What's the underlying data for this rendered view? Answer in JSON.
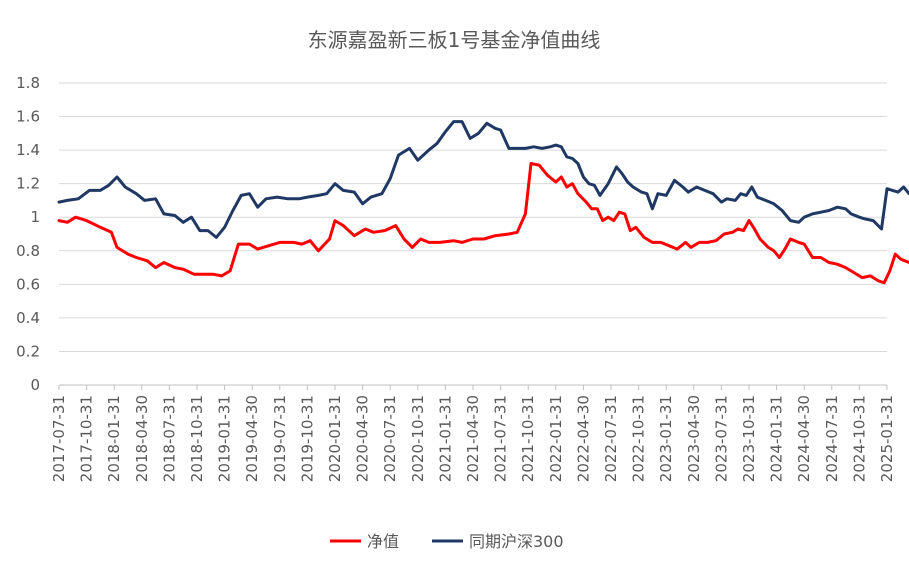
{
  "chart_data": {
    "type": "line",
    "title": "东源嘉盈新三板1号基金净值曲线",
    "xlabel": "",
    "ylabel": "",
    "ylim": [
      0,
      1.8
    ],
    "yticks": [
      "0",
      "0.2",
      "0.4",
      "0.6",
      "0.8",
      "1",
      "1.2",
      "1.4",
      "1.6",
      "1.8"
    ],
    "xticks": [
      "2017-07-31",
      "2017-10-31",
      "2018-01-31",
      "2018-04-30",
      "2018-07-31",
      "2018-10-31",
      "2019-01-31",
      "2019-04-30",
      "2019-07-31",
      "2019-10-31",
      "2020-01-31",
      "2020-04-30",
      "2020-07-31",
      "2020-10-31",
      "2021-01-31",
      "2021-04-30",
      "2021-07-31",
      "2021-10-31",
      "2022-01-31",
      "2022-04-30",
      "2022-07-31",
      "2022-10-31",
      "2023-01-31",
      "2023-04-30",
      "2023-07-31",
      "2023-10-31",
      "2024-01-31",
      "2024-04-30",
      "2024-07-31",
      "2024-10-31",
      "2025-01-31"
    ],
    "grid": true,
    "legend_position": "bottom",
    "series": [
      {
        "name": "净值",
        "color": "#FF0000",
        "points": [
          [
            0,
            0.98
          ],
          [
            0.3,
            0.97
          ],
          [
            0.6,
            1.0
          ],
          [
            1.0,
            0.98
          ],
          [
            1.5,
            0.94
          ],
          [
            1.9,
            0.91
          ],
          [
            2.1,
            0.82
          ],
          [
            2.5,
            0.78
          ],
          [
            2.8,
            0.76
          ],
          [
            3.2,
            0.74
          ],
          [
            3.5,
            0.7
          ],
          [
            3.8,
            0.73
          ],
          [
            4.2,
            0.7
          ],
          [
            4.5,
            0.69
          ],
          [
            4.9,
            0.66
          ],
          [
            5.2,
            0.66
          ],
          [
            5.6,
            0.66
          ],
          [
            5.9,
            0.65
          ],
          [
            6.2,
            0.68
          ],
          [
            6.5,
            0.84
          ],
          [
            6.9,
            0.84
          ],
          [
            7.2,
            0.81
          ],
          [
            7.6,
            0.83
          ],
          [
            8.0,
            0.85
          ],
          [
            8.5,
            0.85
          ],
          [
            8.8,
            0.84
          ],
          [
            9.1,
            0.86
          ],
          [
            9.4,
            0.8
          ],
          [
            9.8,
            0.87
          ],
          [
            10.0,
            0.98
          ],
          [
            10.3,
            0.95
          ],
          [
            10.7,
            0.89
          ],
          [
            11.1,
            0.93
          ],
          [
            11.4,
            0.91
          ],
          [
            11.8,
            0.92
          ],
          [
            12.2,
            0.95
          ],
          [
            12.5,
            0.87
          ],
          [
            12.8,
            0.82
          ],
          [
            13.1,
            0.87
          ],
          [
            13.4,
            0.85
          ],
          [
            13.8,
            0.85
          ],
          [
            14.3,
            0.86
          ],
          [
            14.6,
            0.85
          ],
          [
            15.0,
            0.87
          ],
          [
            15.4,
            0.87
          ],
          [
            15.8,
            0.89
          ],
          [
            16.3,
            0.9
          ],
          [
            16.6,
            0.91
          ],
          [
            16.9,
            1.02
          ],
          [
            17.1,
            1.32
          ],
          [
            17.4,
            1.31
          ],
          [
            17.7,
            1.25
          ],
          [
            18.0,
            1.21
          ],
          [
            18.2,
            1.24
          ],
          [
            18.4,
            1.18
          ],
          [
            18.6,
            1.2
          ],
          [
            18.8,
            1.14
          ],
          [
            19.1,
            1.09
          ],
          [
            19.3,
            1.05
          ],
          [
            19.5,
            1.05
          ],
          [
            19.7,
            0.98
          ],
          [
            19.9,
            1.0
          ],
          [
            20.1,
            0.98
          ],
          [
            20.3,
            1.03
          ],
          [
            20.5,
            1.02
          ],
          [
            20.7,
            0.92
          ],
          [
            20.9,
            0.94
          ],
          [
            21.2,
            0.88
          ],
          [
            21.5,
            0.85
          ],
          [
            21.8,
            0.85
          ],
          [
            22.1,
            0.83
          ],
          [
            22.4,
            0.81
          ],
          [
            22.7,
            0.85
          ],
          [
            22.9,
            0.82
          ],
          [
            23.2,
            0.85
          ],
          [
            23.5,
            0.85
          ],
          [
            23.8,
            0.86
          ],
          [
            24.1,
            0.9
          ],
          [
            24.4,
            0.91
          ],
          [
            24.6,
            0.93
          ],
          [
            24.8,
            0.92
          ],
          [
            25.0,
            0.98
          ],
          [
            25.2,
            0.93
          ],
          [
            25.4,
            0.87
          ],
          [
            25.7,
            0.82
          ],
          [
            25.9,
            0.8
          ],
          [
            26.1,
            0.76
          ],
          [
            26.3,
            0.81
          ],
          [
            26.5,
            0.87
          ],
          [
            26.8,
            0.85
          ],
          [
            27.0,
            0.84
          ],
          [
            27.3,
            0.76
          ],
          [
            27.6,
            0.76
          ],
          [
            27.9,
            0.73
          ],
          [
            28.2,
            0.72
          ],
          [
            28.5,
            0.7
          ],
          [
            28.8,
            0.67
          ],
          [
            29.1,
            0.64
          ],
          [
            29.4,
            0.65
          ],
          [
            29.7,
            0.62
          ],
          [
            29.9,
            0.61
          ],
          [
            30.1,
            0.68
          ],
          [
            30.3,
            0.78
          ],
          [
            30.5,
            0.75
          ],
          [
            30.8,
            0.73
          ],
          [
            31.1,
            0.7
          ],
          [
            31.3,
            0.69
          ],
          [
            31.5,
            0.68
          ],
          [
            31.8,
            0.68
          ],
          [
            32.0,
            0.69
          ]
        ]
      },
      {
        "name": "同期沪深300",
        "color": "#1F3864",
        "points": [
          [
            0,
            1.09
          ],
          [
            0.3,
            1.1
          ],
          [
            0.7,
            1.11
          ],
          [
            1.1,
            1.16
          ],
          [
            1.5,
            1.16
          ],
          [
            1.8,
            1.19
          ],
          [
            2.1,
            1.24
          ],
          [
            2.4,
            1.18
          ],
          [
            2.8,
            1.14
          ],
          [
            3.1,
            1.1
          ],
          [
            3.5,
            1.11
          ],
          [
            3.8,
            1.02
          ],
          [
            4.2,
            1.01
          ],
          [
            4.5,
            0.97
          ],
          [
            4.8,
            1.0
          ],
          [
            5.1,
            0.92
          ],
          [
            5.4,
            0.92
          ],
          [
            5.7,
            0.88
          ],
          [
            6.0,
            0.94
          ],
          [
            6.3,
            1.04
          ],
          [
            6.6,
            1.13
          ],
          [
            6.9,
            1.14
          ],
          [
            7.2,
            1.06
          ],
          [
            7.5,
            1.11
          ],
          [
            7.9,
            1.12
          ],
          [
            8.3,
            1.11
          ],
          [
            8.7,
            1.11
          ],
          [
            9.0,
            1.12
          ],
          [
            9.4,
            1.13
          ],
          [
            9.7,
            1.14
          ],
          [
            10.0,
            1.2
          ],
          [
            10.3,
            1.16
          ],
          [
            10.7,
            1.15
          ],
          [
            11.0,
            1.08
          ],
          [
            11.3,
            1.12
          ],
          [
            11.7,
            1.14
          ],
          [
            12.0,
            1.23
          ],
          [
            12.3,
            1.37
          ],
          [
            12.7,
            1.41
          ],
          [
            13.0,
            1.34
          ],
          [
            13.4,
            1.4
          ],
          [
            13.7,
            1.44
          ],
          [
            14.0,
            1.51
          ],
          [
            14.3,
            1.57
          ],
          [
            14.6,
            1.57
          ],
          [
            14.9,
            1.47
          ],
          [
            15.2,
            1.5
          ],
          [
            15.5,
            1.56
          ],
          [
            15.8,
            1.53
          ],
          [
            16.0,
            1.52
          ],
          [
            16.3,
            1.41
          ],
          [
            16.6,
            1.41
          ],
          [
            16.9,
            1.41
          ],
          [
            17.2,
            1.42
          ],
          [
            17.5,
            1.41
          ],
          [
            17.8,
            1.42
          ],
          [
            18.0,
            1.43
          ],
          [
            18.2,
            1.42
          ],
          [
            18.4,
            1.36
          ],
          [
            18.6,
            1.35
          ],
          [
            18.8,
            1.32
          ],
          [
            19.0,
            1.24
          ],
          [
            19.2,
            1.2
          ],
          [
            19.4,
            1.19
          ],
          [
            19.6,
            1.13
          ],
          [
            19.9,
            1.2
          ],
          [
            20.2,
            1.3
          ],
          [
            20.4,
            1.26
          ],
          [
            20.6,
            1.21
          ],
          [
            20.8,
            1.18
          ],
          [
            21.1,
            1.15
          ],
          [
            21.3,
            1.14
          ],
          [
            21.5,
            1.05
          ],
          [
            21.7,
            1.14
          ],
          [
            22.0,
            1.13
          ],
          [
            22.3,
            1.22
          ],
          [
            22.6,
            1.18
          ],
          [
            22.8,
            1.15
          ],
          [
            23.1,
            1.18
          ],
          [
            23.4,
            1.16
          ],
          [
            23.7,
            1.14
          ],
          [
            24.0,
            1.09
          ],
          [
            24.2,
            1.11
          ],
          [
            24.5,
            1.1
          ],
          [
            24.7,
            1.14
          ],
          [
            24.9,
            1.13
          ],
          [
            25.1,
            1.18
          ],
          [
            25.3,
            1.12
          ],
          [
            25.6,
            1.1
          ],
          [
            25.9,
            1.08
          ],
          [
            26.2,
            1.04
          ],
          [
            26.5,
            0.98
          ],
          [
            26.8,
            0.97
          ],
          [
            27.0,
            1.0
          ],
          [
            27.3,
            1.02
          ],
          [
            27.6,
            1.03
          ],
          [
            27.9,
            1.04
          ],
          [
            28.2,
            1.06
          ],
          [
            28.5,
            1.05
          ],
          [
            28.7,
            1.02
          ],
          [
            29.0,
            1.0
          ],
          [
            29.2,
            0.99
          ],
          [
            29.5,
            0.98
          ],
          [
            29.8,
            0.93
          ],
          [
            30.0,
            1.17
          ],
          [
            30.2,
            1.16
          ],
          [
            30.4,
            1.15
          ],
          [
            30.6,
            1.18
          ],
          [
            30.8,
            1.14
          ],
          [
            31.0,
            1.16
          ],
          [
            31.3,
            1.14
          ],
          [
            31.6,
            1.1
          ],
          [
            31.8,
            1.11
          ],
          [
            32.0,
            1.13
          ]
        ]
      }
    ]
  }
}
